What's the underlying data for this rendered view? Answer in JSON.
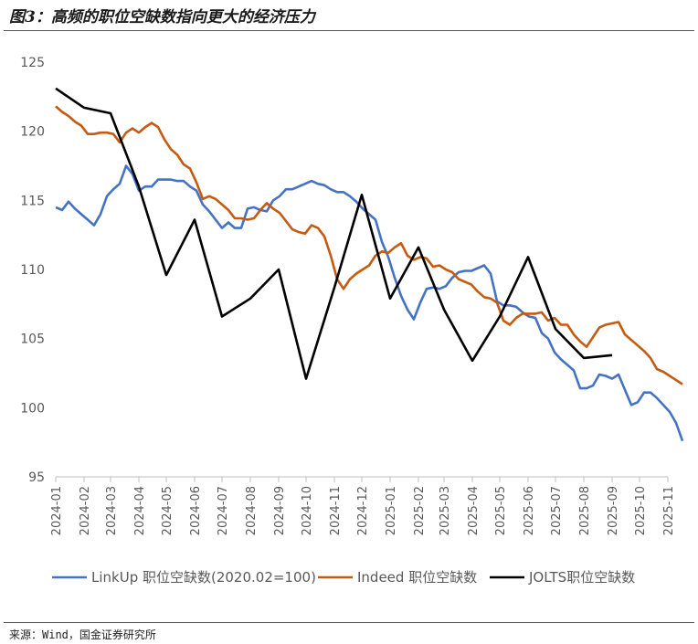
{
  "title": "图3：高频的职位空缺数指向更大的经济压力",
  "source": "来源：Wind，国金证券研究所",
  "chart_data": {
    "type": "line",
    "title": "图3：高频的职位空缺数指向更大的经济压力",
    "xlabel": "",
    "ylabel": "",
    "ylim": [
      95,
      125
    ],
    "yticks": [
      95,
      100,
      105,
      110,
      115,
      120,
      125
    ],
    "grid": false,
    "legend_position": "bottom",
    "x_start": "2024-01",
    "x_end": "2025-11",
    "categories": [
      "2024-01",
      "2024-02",
      "2024-03",
      "2024-04",
      "2024-05",
      "2024-06",
      "2024-07",
      "2024-08",
      "2024-09",
      "2024-10",
      "2024-11",
      "2024-12",
      "2025-01",
      "2025-02",
      "2025-03",
      "2025-04",
      "2025-05",
      "2025-06",
      "2025-07",
      "2025-08",
      "2025-09",
      "2025-10",
      "2025-11"
    ],
    "series": [
      {
        "name": "LinkUp 职位空缺数(2020.02=100)",
        "color": "#4472C4",
        "points": [
          [
            "2024-01-01",
            114.5
          ],
          [
            "2024-01-08",
            114.3
          ],
          [
            "2024-01-15",
            114.9
          ],
          [
            "2024-01-22",
            114.4
          ],
          [
            "2024-01-29",
            114.0
          ],
          [
            "2024-02-05",
            113.6
          ],
          [
            "2024-02-12",
            113.2
          ],
          [
            "2024-02-19",
            114.0
          ],
          [
            "2024-02-26",
            115.3
          ],
          [
            "2024-03-04",
            115.8
          ],
          [
            "2024-03-11",
            116.2
          ],
          [
            "2024-03-18",
            117.5
          ],
          [
            "2024-03-25",
            116.9
          ],
          [
            "2024-04-01",
            115.7
          ],
          [
            "2024-04-08",
            116.0
          ],
          [
            "2024-04-15",
            116.0
          ],
          [
            "2024-04-22",
            116.5
          ],
          [
            "2024-04-29",
            116.5
          ],
          [
            "2024-05-06",
            116.5
          ],
          [
            "2024-05-13",
            116.4
          ],
          [
            "2024-05-20",
            116.4
          ],
          [
            "2024-05-27",
            116.0
          ],
          [
            "2024-06-03",
            115.7
          ],
          [
            "2024-06-10",
            114.7
          ],
          [
            "2024-06-17",
            114.2
          ],
          [
            "2024-06-24",
            113.6
          ],
          [
            "2024-07-01",
            113.0
          ],
          [
            "2024-07-08",
            113.4
          ],
          [
            "2024-07-15",
            113.0
          ],
          [
            "2024-07-22",
            113.0
          ],
          [
            "2024-07-29",
            114.4
          ],
          [
            "2024-08-05",
            114.5
          ],
          [
            "2024-08-12",
            114.3
          ],
          [
            "2024-08-19",
            114.2
          ],
          [
            "2024-08-26",
            115.0
          ],
          [
            "2024-09-02",
            115.3
          ],
          [
            "2024-09-09",
            115.8
          ],
          [
            "2024-09-16",
            115.8
          ],
          [
            "2024-09-23",
            116.0
          ],
          [
            "2024-09-30",
            116.2
          ],
          [
            "2024-10-07",
            116.4
          ],
          [
            "2024-10-14",
            116.2
          ],
          [
            "2024-10-21",
            116.1
          ],
          [
            "2024-10-28",
            115.8
          ],
          [
            "2024-11-04",
            115.6
          ],
          [
            "2024-11-11",
            115.6
          ],
          [
            "2024-11-18",
            115.3
          ],
          [
            "2024-11-25",
            114.9
          ],
          [
            "2024-12-02",
            114.4
          ],
          [
            "2024-12-09",
            114.0
          ],
          [
            "2024-12-16",
            113.6
          ],
          [
            "2024-12-23",
            112.0
          ],
          [
            "2024-12-30",
            110.9
          ],
          [
            "2025-01-06",
            109.4
          ],
          [
            "2025-01-13",
            108.1
          ],
          [
            "2025-01-20",
            107.1
          ],
          [
            "2025-01-27",
            106.4
          ],
          [
            "2025-02-03",
            107.6
          ],
          [
            "2025-02-10",
            108.6
          ],
          [
            "2025-02-17",
            108.7
          ],
          [
            "2025-02-24",
            108.6
          ],
          [
            "2025-03-03",
            108.8
          ],
          [
            "2025-03-10",
            109.4
          ],
          [
            "2025-03-17",
            109.8
          ],
          [
            "2025-03-24",
            109.9
          ],
          [
            "2025-03-31",
            109.9
          ],
          [
            "2025-04-07",
            110.1
          ],
          [
            "2025-04-14",
            110.3
          ],
          [
            "2025-04-21",
            109.7
          ],
          [
            "2025-04-28",
            107.7
          ],
          [
            "2025-05-05",
            107.4
          ],
          [
            "2025-05-12",
            107.4
          ],
          [
            "2025-05-19",
            107.3
          ],
          [
            "2025-05-26",
            106.9
          ],
          [
            "2025-06-02",
            106.6
          ],
          [
            "2025-06-09",
            106.5
          ],
          [
            "2025-06-16",
            105.4
          ],
          [
            "2025-06-23",
            105.0
          ],
          [
            "2025-06-30",
            104.0
          ],
          [
            "2025-07-07",
            103.5
          ],
          [
            "2025-07-14",
            103.1
          ],
          [
            "2025-07-21",
            102.7
          ],
          [
            "2025-07-28",
            101.4
          ],
          [
            "2025-08-04",
            101.4
          ],
          [
            "2025-08-11",
            101.6
          ],
          [
            "2025-08-18",
            102.4
          ],
          [
            "2025-08-25",
            102.3
          ],
          [
            "2025-09-01",
            102.1
          ],
          [
            "2025-09-08",
            102.4
          ],
          [
            "2025-09-15",
            101.3
          ],
          [
            "2025-09-22",
            100.2
          ],
          [
            "2025-09-29",
            100.4
          ],
          [
            "2025-10-06",
            101.1
          ],
          [
            "2025-10-13",
            101.1
          ],
          [
            "2025-10-20",
            100.7
          ],
          [
            "2025-10-27",
            100.2
          ],
          [
            "2025-11-03",
            99.7
          ],
          [
            "2025-11-10",
            98.9
          ],
          [
            "2025-11-17",
            97.6
          ]
        ]
      },
      {
        "name": "Indeed 职位空缺数",
        "color": "#C55A11",
        "points": [
          [
            "2024-01-01",
            121.8
          ],
          [
            "2024-01-08",
            121.4
          ],
          [
            "2024-01-15",
            121.1
          ],
          [
            "2024-01-22",
            120.7
          ],
          [
            "2024-01-29",
            120.4
          ],
          [
            "2024-02-05",
            119.8
          ],
          [
            "2024-02-12",
            119.8
          ],
          [
            "2024-02-19",
            119.9
          ],
          [
            "2024-02-26",
            119.9
          ],
          [
            "2024-03-04",
            119.8
          ],
          [
            "2024-03-11",
            119.2
          ],
          [
            "2024-03-18",
            119.9
          ],
          [
            "2024-03-25",
            120.2
          ],
          [
            "2024-04-01",
            119.9
          ],
          [
            "2024-04-08",
            120.3
          ],
          [
            "2024-04-15",
            120.6
          ],
          [
            "2024-04-22",
            120.3
          ],
          [
            "2024-04-29",
            119.4
          ],
          [
            "2024-05-06",
            118.7
          ],
          [
            "2024-05-13",
            118.3
          ],
          [
            "2024-05-20",
            117.6
          ],
          [
            "2024-05-27",
            117.3
          ],
          [
            "2024-06-03",
            116.3
          ],
          [
            "2024-06-10",
            115.1
          ],
          [
            "2024-06-17",
            115.3
          ],
          [
            "2024-06-24",
            115.1
          ],
          [
            "2024-07-01",
            114.7
          ],
          [
            "2024-07-08",
            114.3
          ],
          [
            "2024-07-15",
            113.7
          ],
          [
            "2024-07-22",
            113.7
          ],
          [
            "2024-07-29",
            113.6
          ],
          [
            "2024-08-05",
            113.7
          ],
          [
            "2024-08-12",
            114.3
          ],
          [
            "2024-08-19",
            114.8
          ],
          [
            "2024-08-26",
            114.4
          ],
          [
            "2024-09-02",
            114.1
          ],
          [
            "2024-09-09",
            113.5
          ],
          [
            "2024-09-16",
            112.9
          ],
          [
            "2024-09-23",
            112.7
          ],
          [
            "2024-09-30",
            112.6
          ],
          [
            "2024-10-07",
            113.2
          ],
          [
            "2024-10-14",
            113.0
          ],
          [
            "2024-10-21",
            112.4
          ],
          [
            "2024-10-28",
            111.0
          ],
          [
            "2024-11-04",
            109.3
          ],
          [
            "2024-11-11",
            108.6
          ],
          [
            "2024-11-18",
            109.3
          ],
          [
            "2024-11-25",
            109.7
          ],
          [
            "2024-12-02",
            110.0
          ],
          [
            "2024-12-09",
            110.3
          ],
          [
            "2024-12-16",
            111.0
          ],
          [
            "2024-12-23",
            111.3
          ],
          [
            "2024-12-30",
            111.2
          ],
          [
            "2025-01-06",
            111.6
          ],
          [
            "2025-01-13",
            111.9
          ],
          [
            "2025-01-20",
            111.0
          ],
          [
            "2025-01-27",
            110.7
          ],
          [
            "2025-02-03",
            110.9
          ],
          [
            "2025-02-10",
            110.8
          ],
          [
            "2025-02-17",
            110.2
          ],
          [
            "2025-02-24",
            110.3
          ],
          [
            "2025-03-03",
            110.0
          ],
          [
            "2025-03-10",
            109.8
          ],
          [
            "2025-03-17",
            109.3
          ],
          [
            "2025-03-24",
            109.1
          ],
          [
            "2025-03-31",
            108.9
          ],
          [
            "2025-04-07",
            108.4
          ],
          [
            "2025-04-14",
            108.0
          ],
          [
            "2025-04-21",
            107.9
          ],
          [
            "2025-04-28",
            107.6
          ],
          [
            "2025-05-05",
            106.3
          ],
          [
            "2025-05-12",
            106.0
          ],
          [
            "2025-05-19",
            106.5
          ],
          [
            "2025-05-26",
            106.8
          ],
          [
            "2025-06-02",
            106.8
          ],
          [
            "2025-06-09",
            106.8
          ],
          [
            "2025-06-16",
            106.9
          ],
          [
            "2025-06-23",
            106.3
          ],
          [
            "2025-06-30",
            106.5
          ],
          [
            "2025-07-07",
            106.0
          ],
          [
            "2025-07-14",
            106.0
          ],
          [
            "2025-07-21",
            105.3
          ],
          [
            "2025-07-28",
            104.8
          ],
          [
            "2025-08-04",
            104.4
          ],
          [
            "2025-08-11",
            105.1
          ],
          [
            "2025-08-18",
            105.8
          ],
          [
            "2025-08-25",
            106.0
          ],
          [
            "2025-09-01",
            106.1
          ],
          [
            "2025-09-08",
            106.2
          ],
          [
            "2025-09-15",
            105.3
          ],
          [
            "2025-09-22",
            104.9
          ],
          [
            "2025-09-29",
            104.5
          ],
          [
            "2025-10-06",
            104.1
          ],
          [
            "2025-10-13",
            103.6
          ],
          [
            "2025-10-20",
            102.8
          ],
          [
            "2025-10-27",
            102.6
          ],
          [
            "2025-11-03",
            102.3
          ],
          [
            "2025-11-10",
            102.0
          ],
          [
            "2025-11-17",
            101.7
          ]
        ]
      },
      {
        "name": "JOLTS职位空缺数",
        "color": "#000000",
        "points": [
          [
            "2024-01-01",
            123.1
          ],
          [
            "2024-02-01",
            121.7
          ],
          [
            "2024-03-01",
            121.3
          ],
          [
            "2024-04-01",
            116.0
          ],
          [
            "2024-05-01",
            109.6
          ],
          [
            "2024-06-01",
            113.6
          ],
          [
            "2024-07-01",
            106.6
          ],
          [
            "2024-08-01",
            107.9
          ],
          [
            "2024-09-01",
            110.0
          ],
          [
            "2024-10-01",
            102.1
          ],
          [
            "2024-11-01",
            108.7
          ],
          [
            "2024-12-01",
            115.4
          ],
          [
            "2025-01-01",
            107.9
          ],
          [
            "2025-02-01",
            111.6
          ],
          [
            "2025-03-01",
            107.1
          ],
          [
            "2025-04-01",
            103.4
          ],
          [
            "2025-05-01",
            106.6
          ],
          [
            "2025-06-01",
            110.9
          ],
          [
            "2025-07-01",
            105.7
          ],
          [
            "2025-08-01",
            103.6
          ],
          [
            "2025-09-01",
            103.8
          ]
        ]
      }
    ]
  }
}
